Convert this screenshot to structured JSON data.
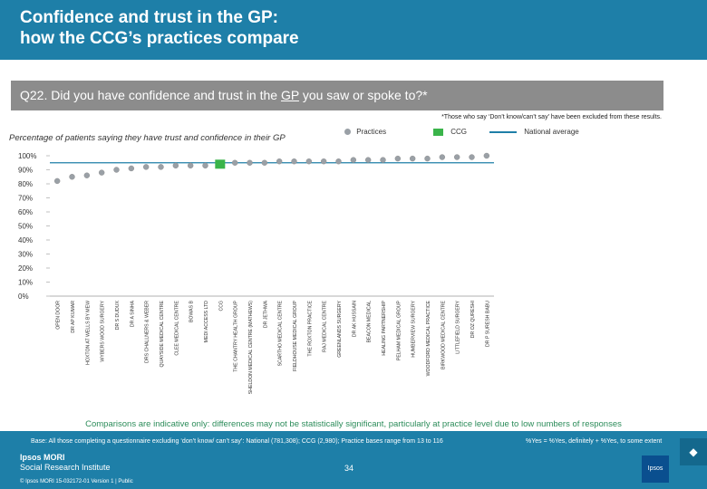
{
  "header": {
    "title": "Confidence and trust in the GP:\nhow the CCG’s practices compare"
  },
  "question": {
    "prefix": "Q22. Did you have confidence and trust in the ",
    "underline": "GP",
    "suffix": " you saw or spoke to?*"
  },
  "footnote": "*Those who say ‘Don’t know/can’t say’ have been excluded from these results.",
  "subtitle": "Percentage of patients saying they have trust and confidence in their GP",
  "legend": {
    "practices": "Practices",
    "ccg": "CCG",
    "national": "National average"
  },
  "colors": {
    "header": "#1e7fa8",
    "question_bar": "#8c8c8c",
    "practice_dot": "#9aa0a6",
    "ccg_marker": "#3ab44a",
    "national_line": "#1e7fa8",
    "note": "#2c8c5a"
  },
  "chart_data": {
    "type": "scatter",
    "title": "Percentage of patients saying they have trust and confidence in their GP",
    "ylim": [
      0,
      100
    ],
    "yticks": [
      "0%",
      "10%",
      "20%",
      "30%",
      "40%",
      "50%",
      "60%",
      "70%",
      "80%",
      "90%",
      "100%"
    ],
    "national_average": 95,
    "categories": [
      "OPEN DOOR",
      "DR AP KUMAR",
      "HOXTON AT WELLS BY MEW",
      "WYBERS WOOD SURGERY",
      "DR S DUDUX",
      "DR A SINHA",
      "DRS CHALLNERS & WEBER",
      "QUAYSIDE MEDICAL CENTRE",
      "CLEE MEDICAL CENTRE",
      "BOWAS B",
      "MEDI ACCESS LTD",
      "CCG",
      "THE CHANTRY HEALTH GROUP",
      "SHELDON MEDICAL CENTRE (MATHEWS)",
      "DR JETHWA",
      "SCARTHO MEDICAL CENTRE",
      "FIELDHOUSE MEDICAL GROUP",
      "THE ROXTON PRACTICE",
      "RAJ MEDICAL CENTRE",
      "GREENLANDS SURGERY",
      "DR AK HUSSAIN",
      "BEACON MEDICAL",
      "HEALING PARTNERSHIP",
      "PELHAM MEDICAL GROUP",
      "HUMBERVIEW SURGERY",
      "WOODFORD MEDICAL PRACTICE",
      "BIRKWOOD MEDICAL CENTRE",
      "LITTLEFIELD SURGERY",
      "DR OZ QURESHI",
      "DR P SURESH BABU"
    ],
    "values": [
      82,
      85,
      86,
      88,
      90,
      91,
      92,
      92,
      93,
      93,
      93,
      94,
      95,
      95,
      95,
      96,
      96,
      96,
      96,
      96,
      97,
      97,
      97,
      98,
      98,
      98,
      99,
      99,
      99,
      100
    ],
    "ccg_index": 11
  },
  "note": "Comparisons are indicative only: differences may not be statistically significant, particularly at practice level due to low numbers of responses",
  "base": "Base: All those completing a questionnaire excluding ‘don’t know/ can’t say’: National (781,308); CCG (2,980); Practice bases range from 13 to 116",
  "yes_def": "%Yes = %Yes, definitely + %Yes, to some extent",
  "page_number": "34",
  "logo": {
    "line1": "Ipsos MORI",
    "line2": "Social Research Institute"
  },
  "copyright": "© Ipsos MORI    15-032172-01 Version 1 | Public",
  "logo_box": "Ipsos",
  "nav_glyph": "◆"
}
